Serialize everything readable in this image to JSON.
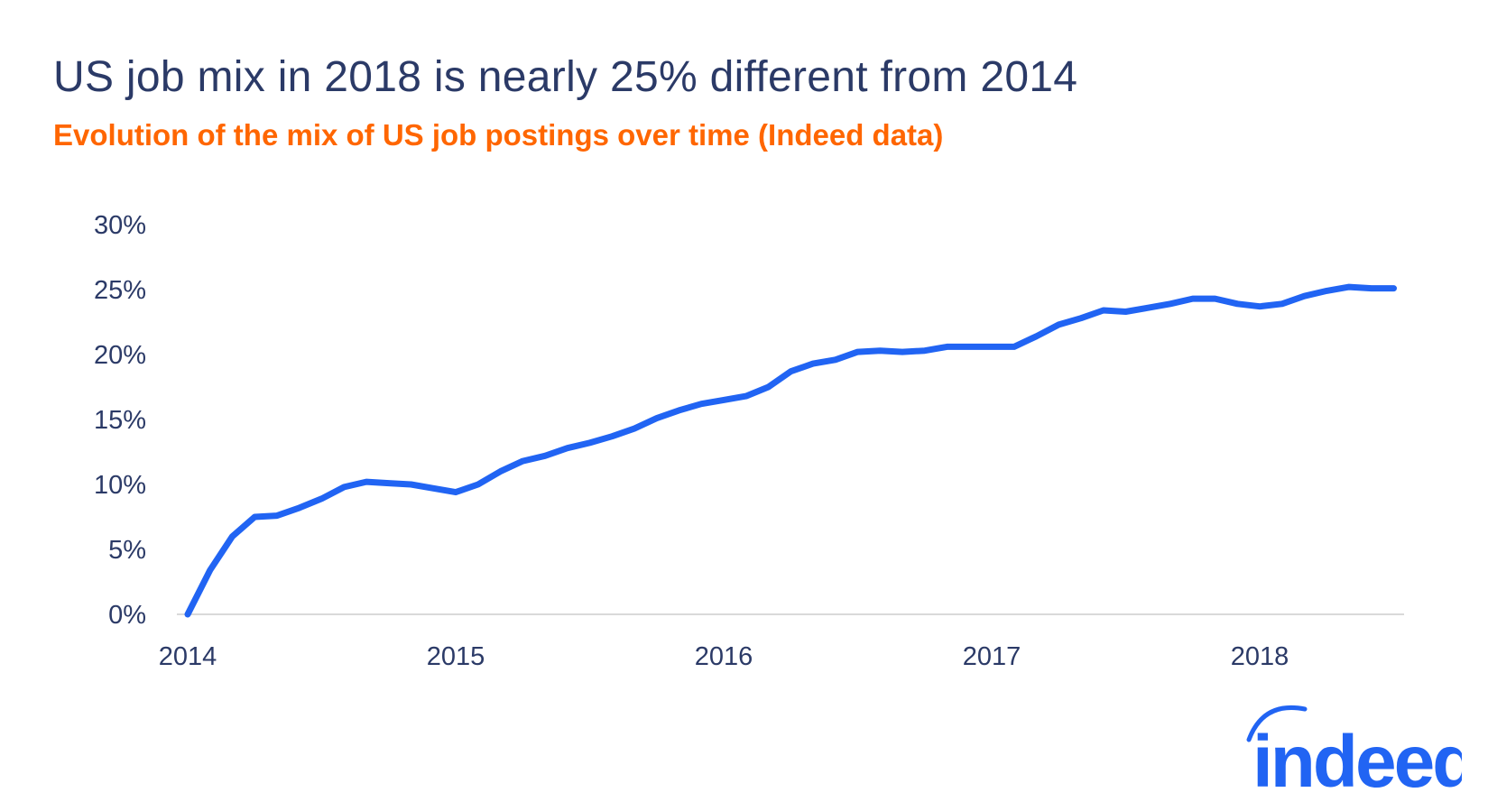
{
  "title": "US job mix in 2018 is nearly 25% different from 2014",
  "subtitle": "Evolution of the mix of US job postings over time (Indeed data)",
  "logo_text": "indeed",
  "colors": {
    "title": "#2b3a67",
    "subtitle": "#ff6600",
    "line": "#2164f3",
    "axis": "#d9d9d9",
    "logo": "#2164f3"
  },
  "chart_data": {
    "type": "line",
    "title": "US job mix in 2018 is nearly 25% different from 2014",
    "subtitle": "Evolution of the mix of US job postings over time (Indeed data)",
    "xlabel": "",
    "ylabel": "",
    "ylim": [
      0,
      30
    ],
    "xlim": [
      "2014-01",
      "2018-07"
    ],
    "grid": false,
    "y_ticks": [
      "0%",
      "5%",
      "10%",
      "15%",
      "20%",
      "25%",
      "30%"
    ],
    "x_ticks": [
      "2014",
      "2015",
      "2016",
      "2017",
      "2018"
    ],
    "x": [
      "2014-01",
      "2014-02",
      "2014-03",
      "2014-04",
      "2014-05",
      "2014-06",
      "2014-07",
      "2014-08",
      "2014-09",
      "2014-10",
      "2014-11",
      "2014-12",
      "2015-01",
      "2015-02",
      "2015-03",
      "2015-04",
      "2015-05",
      "2015-06",
      "2015-07",
      "2015-08",
      "2015-09",
      "2015-10",
      "2015-11",
      "2015-12",
      "2016-01",
      "2016-02",
      "2016-03",
      "2016-04",
      "2016-05",
      "2016-06",
      "2016-07",
      "2016-08",
      "2016-09",
      "2016-10",
      "2016-11",
      "2016-12",
      "2017-01",
      "2017-02",
      "2017-03",
      "2017-04",
      "2017-05",
      "2017-06",
      "2017-07",
      "2017-08",
      "2017-09",
      "2017-10",
      "2017-11",
      "2017-12",
      "2018-01",
      "2018-02",
      "2018-03",
      "2018-04",
      "2018-05",
      "2018-06",
      "2018-07"
    ],
    "series": [
      {
        "values": [
          0,
          3.4,
          6.0,
          7.5,
          7.6,
          8.2,
          8.9,
          9.8,
          10.2,
          10.1,
          10.0,
          9.7,
          9.4,
          10.0,
          11.0,
          11.8,
          12.2,
          12.8,
          13.2,
          13.7,
          14.3,
          15.1,
          15.7,
          16.2,
          16.5,
          16.8,
          17.5,
          18.7,
          19.3,
          19.6,
          20.2,
          20.3,
          20.2,
          20.3,
          20.6,
          20.6,
          20.6,
          20.6,
          21.4,
          22.3,
          22.8,
          23.4,
          23.3,
          23.6,
          23.9,
          24.3,
          24.3,
          23.9,
          23.7,
          23.9,
          24.5,
          24.9,
          25.2,
          25.1,
          25.1
        ]
      }
    ]
  }
}
